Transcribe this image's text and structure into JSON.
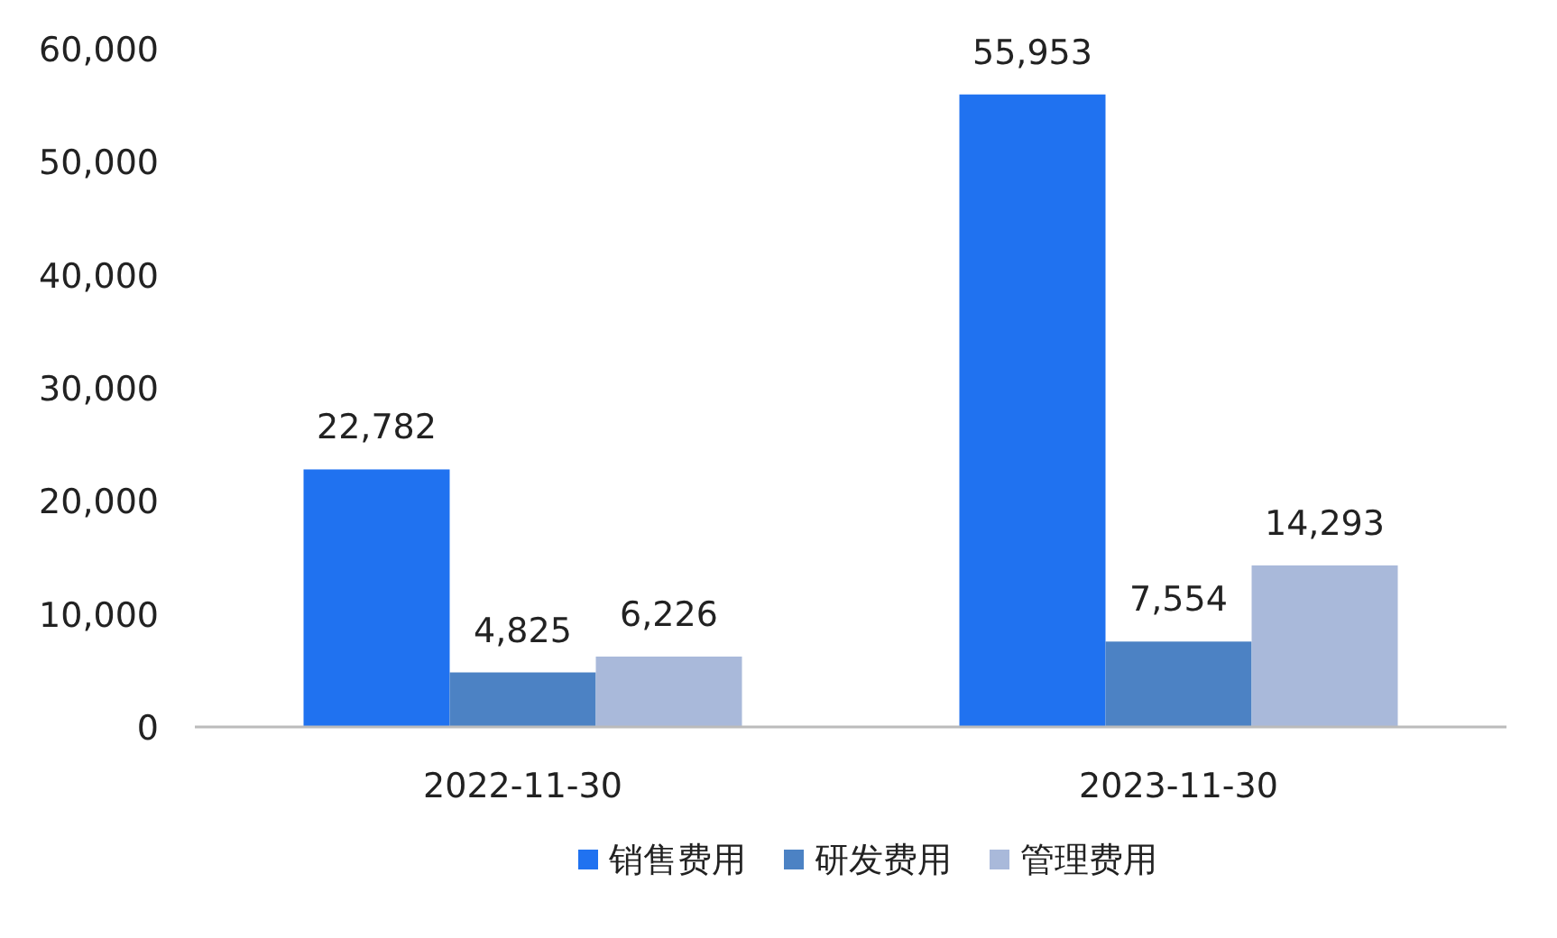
{
  "chart_data": {
    "type": "bar",
    "categories": [
      "2022-11-30",
      "2023-11-30"
    ],
    "series": [
      {
        "name": "销售费用",
        "color": "#2072f0",
        "values": [
          22782,
          55953
        ],
        "value_labels": [
          "22,782",
          "55,953"
        ]
      },
      {
        "name": "研发费用",
        "color": "#4c82c4",
        "values": [
          4825,
          7554
        ],
        "value_labels": [
          "4,825",
          "7,554"
        ]
      },
      {
        "name": "管理费用",
        "color": "#a9b9da",
        "values": [
          6226,
          14293
        ],
        "value_labels": [
          "6,226",
          "14,293"
        ]
      }
    ],
    "ylim": [
      0,
      60000
    ],
    "yticks": [
      {
        "value": 0,
        "label": "0"
      },
      {
        "value": 10000,
        "label": "10,000"
      },
      {
        "value": 20000,
        "label": "20,000"
      },
      {
        "value": 30000,
        "label": "30,000"
      },
      {
        "value": 40000,
        "label": "40,000"
      },
      {
        "value": 50000,
        "label": "50,000"
      },
      {
        "value": 60000,
        "label": "60,000"
      }
    ],
    "legend": "bottom",
    "grid": false
  }
}
